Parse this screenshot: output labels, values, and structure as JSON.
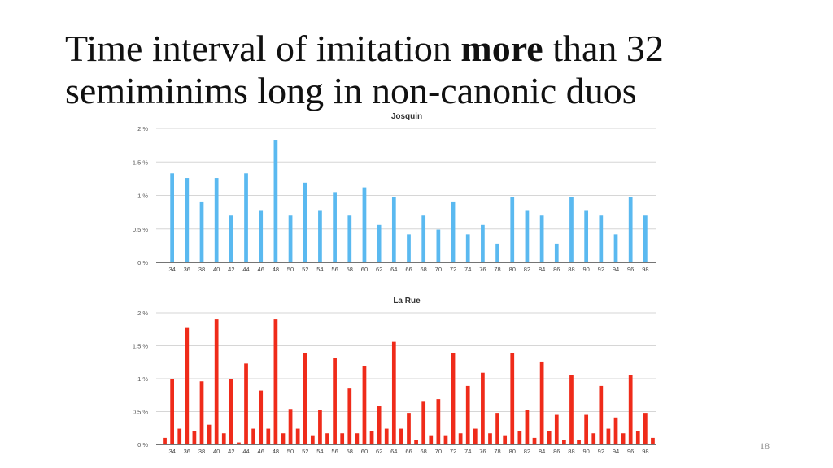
{
  "slide": {
    "title_part1": "Time interval of imitation ",
    "title_bold": "more",
    "title_part2": " than 32",
    "title_line2": "semiminims long in non-canonic duos",
    "page_number": "18"
  },
  "chart_data": [
    {
      "type": "bar",
      "title": "Josquin",
      "color": "#5ab9f0",
      "ylim": [
        0,
        2
      ],
      "yticks": [
        0,
        0.5,
        1,
        1.5,
        2
      ],
      "ytick_labels": [
        "0 %",
        "0.5 %",
        "1 %",
        "1.5 %",
        "2 %"
      ],
      "grid": true,
      "categories": [
        33,
        34,
        35,
        36,
        37,
        38,
        39,
        40,
        41,
        42,
        43,
        44,
        45,
        46,
        47,
        48,
        49,
        50,
        51,
        52,
        53,
        54,
        55,
        56,
        57,
        58,
        59,
        60,
        61,
        62,
        63,
        64,
        65,
        66,
        67,
        68,
        69,
        70,
        71,
        72,
        73,
        74,
        75,
        76,
        77,
        78,
        79,
        80,
        81,
        82,
        83,
        84,
        85,
        86,
        87,
        88,
        89,
        90,
        91,
        92,
        93,
        94,
        95,
        96,
        97,
        98,
        99
      ],
      "tick_labels": [
        "",
        "34",
        "",
        "36",
        "",
        "38",
        "",
        "40",
        "",
        "42",
        "",
        "44",
        "",
        "46",
        "",
        "48",
        "",
        "50",
        "",
        "52",
        "",
        "54",
        "",
        "56",
        "",
        "58",
        "",
        "60",
        "",
        "62",
        "",
        "64",
        "",
        "66",
        "",
        "68",
        "",
        "70",
        "",
        "72",
        "",
        "74",
        "",
        "76",
        "",
        "78",
        "",
        "80",
        "",
        "82",
        "",
        "84",
        "",
        "86",
        "",
        "88",
        "",
        "90",
        "",
        "92",
        "",
        "94",
        "",
        "96",
        "",
        "98",
        ""
      ],
      "values": [
        0,
        1.33,
        0,
        1.26,
        0,
        0.91,
        0,
        1.26,
        0,
        0.7,
        0,
        1.33,
        0,
        0.77,
        0,
        1.83,
        0,
        0.7,
        0,
        1.19,
        0,
        0.77,
        0,
        1.05,
        0,
        0.7,
        0,
        1.12,
        0,
        0.56,
        0,
        0.98,
        0,
        0.42,
        0,
        0.7,
        0,
        0.49,
        0,
        0.91,
        0,
        0.42,
        0,
        0.56,
        0,
        0.28,
        0,
        0.98,
        0,
        0.77,
        0,
        0.7,
        0,
        0.28,
        0,
        0.98,
        0,
        0.77,
        0,
        0.7,
        0,
        0.42,
        0,
        0.98,
        0,
        0.7,
        0
      ]
    },
    {
      "type": "bar",
      "title": "La Rue",
      "color": "#ef2b1a",
      "ylim": [
        0,
        2
      ],
      "yticks": [
        0,
        0.5,
        1,
        1.5,
        2
      ],
      "ytick_labels": [
        "0 %",
        "0.5 %",
        "1 %",
        "1.5 %",
        "2 %"
      ],
      "grid": true,
      "categories": [
        33,
        34,
        35,
        36,
        37,
        38,
        39,
        40,
        41,
        42,
        43,
        44,
        45,
        46,
        47,
        48,
        49,
        50,
        51,
        52,
        53,
        54,
        55,
        56,
        57,
        58,
        59,
        60,
        61,
        62,
        63,
        64,
        65,
        66,
        67,
        68,
        69,
        70,
        71,
        72,
        73,
        74,
        75,
        76,
        77,
        78,
        79,
        80,
        81,
        82,
        83,
        84,
        85,
        86,
        87,
        88,
        89,
        90,
        91,
        92,
        93,
        94,
        95,
        96,
        97,
        98,
        99
      ],
      "tick_labels": [
        "",
        "34",
        "",
        "36",
        "",
        "38",
        "",
        "40",
        "",
        "42",
        "",
        "44",
        "",
        "46",
        "",
        "48",
        "",
        "50",
        "",
        "52",
        "",
        "54",
        "",
        "56",
        "",
        "58",
        "",
        "60",
        "",
        "62",
        "",
        "64",
        "",
        "66",
        "",
        "68",
        "",
        "70",
        "",
        "72",
        "",
        "74",
        "",
        "76",
        "",
        "78",
        "",
        "80",
        "",
        "82",
        "",
        "84",
        "",
        "86",
        "",
        "88",
        "",
        "90",
        "",
        "92",
        "",
        "94",
        "",
        "96",
        "",
        "98",
        ""
      ],
      "values": [
        0.1,
        1.0,
        0.24,
        1.77,
        0.2,
        0.96,
        0.3,
        1.9,
        0.17,
        1.0,
        0.03,
        1.23,
        0.24,
        0.82,
        0.24,
        1.9,
        0.17,
        0.54,
        0.24,
        1.39,
        0.14,
        0.52,
        0.17,
        1.32,
        0.17,
        0.85,
        0.17,
        1.19,
        0.2,
        0.58,
        0.24,
        1.56,
        0.24,
        0.48,
        0.07,
        0.65,
        0.14,
        0.69,
        0.14,
        1.39,
        0.17,
        0.89,
        0.24,
        1.09,
        0.17,
        0.48,
        0.14,
        1.39,
        0.2,
        0.52,
        0.1,
        1.26,
        0.2,
        0.45,
        0.07,
        1.06,
        0.07,
        0.45,
        0.17,
        0.89,
        0.24,
        0.41,
        0.17,
        1.06,
        0.2,
        0.48,
        0.1
      ]
    }
  ]
}
